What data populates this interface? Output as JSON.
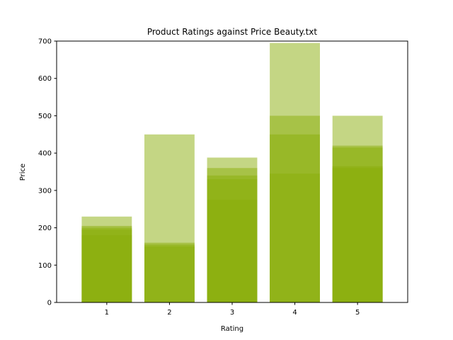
{
  "chart_data": {
    "type": "bar",
    "title": "Product Ratings against Price Beauty.txt",
    "xlabel": "Rating",
    "ylabel": "Price",
    "categories": [
      "1",
      "2",
      "3",
      "4",
      "5"
    ],
    "ylim": [
      0,
      700
    ],
    "yticks": [
      "0",
      "100",
      "200",
      "300",
      "400",
      "500",
      "600",
      "700"
    ],
    "bar_color": "#8aae0a",
    "bar_opacity": 0.5,
    "grid": false,
    "legend": "none",
    "stacks": [
      [
        180,
        195,
        200,
        205,
        230
      ],
      [
        150,
        155,
        160,
        450
      ],
      [
        275,
        330,
        340,
        360,
        388
      ],
      [
        345,
        450,
        500,
        695
      ],
      [
        360,
        365,
        415,
        420,
        500
      ]
    ]
  }
}
